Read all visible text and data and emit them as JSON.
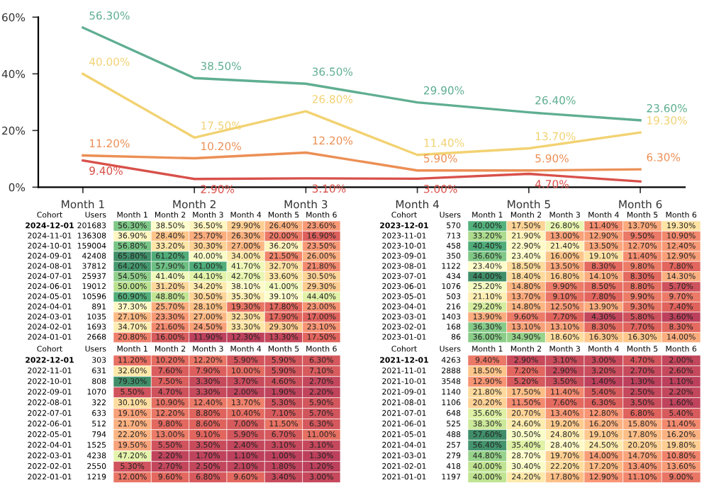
{
  "chart_data": [
    {
      "type": "line",
      "categories": [
        "Month 1",
        "Month 2",
        "Month 3",
        "Month 4",
        "Month 5",
        "Month 6"
      ],
      "ylim": [
        0,
        60
      ],
      "yticks": [
        {
          "value": 0,
          "label": "0%"
        },
        {
          "value": 20,
          "label": "20%"
        },
        {
          "value": 40,
          "label": "40%"
        },
        {
          "value": 60,
          "label": "60%"
        }
      ],
      "grid": false,
      "marker": "none",
      "line_style": "solid",
      "series": [
        {
          "color": "#5fae91",
          "values": [
            56.3,
            38.5,
            36.5,
            29.9,
            26.4,
            23.6
          ],
          "value_labels": [
            "56.30%",
            "38.50%",
            "36.50%",
            "29.90%",
            "26.40%",
            "23.60%"
          ]
        },
        {
          "color": "#f2d272",
          "values": [
            40.0,
            17.5,
            26.8,
            11.4,
            13.7,
            19.3
          ],
          "value_labels": [
            "40.00%",
            "17.50%",
            "26.80%",
            "11.40%",
            "13.70%",
            "19.30%"
          ]
        },
        {
          "color": "#ec8f55",
          "values": [
            11.2,
            10.2,
            12.2,
            5.9,
            5.9,
            6.3
          ],
          "value_labels": [
            "11.20%",
            "10.20%",
            "12.20%",
            "5.90%",
            "5.90%",
            "6.30%"
          ]
        },
        {
          "color": "#d8504a",
          "values": [
            9.4,
            2.9,
            3.1,
            3.0,
            4.7,
            2.0
          ],
          "value_labels": [
            "9.40%",
            "2.90%",
            "3.10%",
            "3.00%",
            "4.70%",
            null
          ]
        }
      ]
    },
    {
      "type": "heatmap",
      "ylabel": "Cohort",
      "y2label": "Users",
      "categories": [
        "Month 1",
        "Month 2",
        "Month 3",
        "Month 4",
        "Month 5",
        "Month 6"
      ],
      "y_categories": [
        "2024-12-01",
        "2024-11-01",
        "2024-10-01",
        "2024-09-01",
        "2024-08-01",
        "2024-07-01",
        "2024-06-01",
        "2024-05-01",
        "2024-04-01",
        "2024-03-01",
        "2024-02-01",
        "2024-01-01"
      ],
      "y2_categories": [
        "201683",
        "136308",
        "159004",
        "42408",
        "37812",
        "25937",
        "19012",
        "10596",
        "891",
        "1035",
        "1693",
        "2668"
      ],
      "cells": [
        [
          56.3,
          38.5,
          36.5,
          29.9,
          26.4,
          23.6
        ],
        [
          36.9,
          28.4,
          25.7,
          26.3,
          20.0,
          16.9
        ],
        [
          56.8,
          33.2,
          30.3,
          27.0,
          36.2,
          23.5
        ],
        [
          65.8,
          61.2,
          40.0,
          34.0,
          21.5,
          26.0
        ],
        [
          64.2,
          57.9,
          61.0,
          41.7,
          32.7,
          21.8
        ],
        [
          54.5,
          41.4,
          44.1,
          42.7,
          33.6,
          30.5
        ],
        [
          50.0,
          31.2,
          34.2,
          38.1,
          41.0,
          29.3
        ],
        [
          60.9,
          48.8,
          30.5,
          35.3,
          39.1,
          44.4
        ],
        [
          37.3,
          25.7,
          28.1,
          19.3,
          17.8,
          23.0
        ],
        [
          27.1,
          23.3,
          27.0,
          32.3,
          17.9,
          17.0
        ],
        [
          34.7,
          21.6,
          24.5,
          33.3,
          29.3,
          23.1
        ],
        [
          20.8,
          16.0,
          11.9,
          12.3,
          13.3,
          17.5
        ]
      ],
      "cell_labels": [
        [
          "56.30%",
          "38.50%",
          "36.50%",
          "29.90%",
          "26.40%",
          "23.60%"
        ],
        [
          "36.90%",
          "28.40%",
          "25.70%",
          "26.30%",
          "20.00%",
          "16.90%"
        ],
        [
          "56.80%",
          "33.20%",
          "30.30%",
          "27.00%",
          "36.20%",
          "23.50%"
        ],
        [
          "65.80%",
          "61.20%",
          "40.00%",
          "34.00%",
          "21.50%",
          "26.00%"
        ],
        [
          "64.20%",
          "57.90%",
          "61.00%",
          "41.70%",
          "32.70%",
          "21.80%"
        ],
        [
          "54.50%",
          "41.40%",
          "44.10%",
          "42.70%",
          "33.60%",
          "30.50%"
        ],
        [
          "50.00%",
          "31.20%",
          "34.20%",
          "38.10%",
          "41.00%",
          "29.30%"
        ],
        [
          "60.90%",
          "48.80%",
          "30.50%",
          "35.30%",
          "39.10%",
          "44.40%"
        ],
        [
          "37.30%",
          "25.70%",
          "28.10%",
          "19.30%",
          "17.80%",
          "23.00%"
        ],
        [
          "27.10%",
          "23.30%",
          "27.00%",
          "32.30%",
          "17.90%",
          "17.00%"
        ],
        [
          "34.70%",
          "21.60%",
          "24.50%",
          "33.30%",
          "29.30%",
          "23.10%"
        ],
        [
          "20.80%",
          "16.00%",
          "11.90%",
          "12.30%",
          "13.30%",
          "17.50%"
        ]
      ]
    },
    {
      "type": "heatmap",
      "ylabel": "Cohort",
      "y2label": "Users",
      "categories": [
        "Month 1",
        "Month 2",
        "Month 3",
        "Month 4",
        "Month 5",
        "Month 6"
      ],
      "y_categories": [
        "2023-12-01",
        "2023-11-01",
        "2023-10-01",
        "2023-09-01",
        "2023-08-01",
        "2023-07-01",
        "2023-06-01",
        "2023-05-01",
        "2023-04-01",
        "2023-03-01",
        "2023-02-01",
        "2023-01-01"
      ],
      "y2_categories": [
        "570",
        "713",
        "458",
        "350",
        "1122",
        "434",
        "1076",
        "503",
        "216",
        "1403",
        "168",
        "86"
      ],
      "cells": [
        [
          40.0,
          17.5,
          26.8,
          11.4,
          13.7,
          19.3
        ],
        [
          33.2,
          21.9,
          13.0,
          12.9,
          9.5,
          10.9
        ],
        [
          40.4,
          22.9,
          21.4,
          13.5,
          12.7,
          12.4
        ],
        [
          36.6,
          23.4,
          16.0,
          19.1,
          11.4,
          12.9
        ],
        [
          23.4,
          18.5,
          13.5,
          8.3,
          9.8,
          7.8
        ],
        [
          44.0,
          18.4,
          16.8,
          14.1,
          8.3,
          14.3
        ],
        [
          25.2,
          14.8,
          9.9,
          8.5,
          8.8,
          5.7
        ],
        [
          21.1,
          13.7,
          9.1,
          7.8,
          9.9,
          9.7
        ],
        [
          29.2,
          14.8,
          12.5,
          13.9,
          9.3,
          7.4
        ],
        [
          13.9,
          9.6,
          7.7,
          4.3,
          5.8,
          3.6
        ],
        [
          36.3,
          13.1,
          13.1,
          8.3,
          7.7,
          8.3
        ],
        [
          36.0,
          34.9,
          18.6,
          16.3,
          16.3,
          14.0
        ]
      ],
      "cell_labels": [
        [
          "40.00%",
          "17.50%",
          "26.80%",
          "11.40%",
          "13.70%",
          "19.30%"
        ],
        [
          "33.20%",
          "21.90%",
          "13.00%",
          "12.90%",
          "9.50%",
          "10.90%"
        ],
        [
          "40.40%",
          "22.90%",
          "21.40%",
          "13.50%",
          "12.70%",
          "12.40%"
        ],
        [
          "36.60%",
          "23.40%",
          "16.00%",
          "19.10%",
          "11.40%",
          "12.90%"
        ],
        [
          "23.40%",
          "18.50%",
          "13.50%",
          "8.30%",
          "9.80%",
          "7.80%"
        ],
        [
          "44.00%",
          "18.40%",
          "16.80%",
          "14.10%",
          "8.30%",
          "14.30%"
        ],
        [
          "25.20%",
          "14.80%",
          "9.90%",
          "8.50%",
          "8.80%",
          "5.70%"
        ],
        [
          "21.10%",
          "13.70%",
          "9.10%",
          "7.80%",
          "9.90%",
          "9.70%"
        ],
        [
          "29.20%",
          "14.80%",
          "12.50%",
          "13.90%",
          "9.30%",
          "7.40%"
        ],
        [
          "13.90%",
          "9.60%",
          "7.70%",
          "4.30%",
          "5.80%",
          "3.60%"
        ],
        [
          "36.30%",
          "13.10%",
          "13.10%",
          "8.30%",
          "7.70%",
          "8.30%"
        ],
        [
          "36.00%",
          "34.90%",
          "18.60%",
          "16.30%",
          "16.30%",
          "14.00%"
        ]
      ]
    },
    {
      "type": "heatmap",
      "ylabel": "Cohort",
      "y2label": "Users",
      "categories": [
        "Month 1",
        "Month 2",
        "Month 3",
        "Month 4",
        "Month 5",
        "Month 6"
      ],
      "y_categories": [
        "2022-12-01",
        "2022-11-01",
        "2022-10-01",
        "2022-09-01",
        "2022-08-01",
        "2022-07-01",
        "2022-06-01",
        "2022-05-01",
        "2022-04-01",
        "2022-03-01",
        "2022-02-01",
        "2022-01-01"
      ],
      "y2_categories": [
        "303",
        "631",
        "808",
        "1070",
        "322",
        "633",
        "512",
        "794",
        "1525",
        "4238",
        "2550",
        "1219"
      ],
      "cells": [
        [
          11.2,
          10.2,
          12.2,
          5.9,
          5.9,
          6.3
        ],
        [
          32.6,
          7.6,
          7.9,
          10.0,
          5.9,
          7.1
        ],
        [
          79.3,
          7.5,
          3.3,
          3.7,
          4.6,
          2.7
        ],
        [
          5.5,
          4.7,
          3.3,
          2.0,
          1.9,
          2.2
        ],
        [
          30.1,
          10.9,
          12.4,
          13.7,
          5.3,
          5.9
        ],
        [
          19.1,
          12.2,
          8.8,
          10.4,
          7.1,
          5.7
        ],
        [
          21.7,
          9.8,
          8.6,
          7.0,
          11.5,
          6.3
        ],
        [
          22.2,
          13.0,
          9.1,
          5.9,
          6.7,
          11.0
        ],
        [
          19.5,
          5.5,
          3.5,
          2.4,
          3.1,
          3.1
        ],
        [
          47.2,
          2.2,
          1.7,
          1.1,
          1.0,
          1.3
        ],
        [
          5.3,
          2.7,
          2.5,
          2.1,
          1.8,
          1.2
        ],
        [
          12.0,
          9.6,
          6.8,
          9.6,
          3.4,
          3.0
        ]
      ],
      "cell_labels": [
        [
          "11.20%",
          "10.20%",
          "12.20%",
          "5.90%",
          "5.90%",
          "6.30%"
        ],
        [
          "32.60%",
          "7.60%",
          "7.90%",
          "10.00%",
          "5.90%",
          "7.10%"
        ],
        [
          "79.30%",
          "7.50%",
          "3.30%",
          "3.70%",
          "4.60%",
          "2.70%"
        ],
        [
          "5.50%",
          "4.70%",
          "3.30%",
          "2.00%",
          "1.90%",
          "2.20%"
        ],
        [
          "30.10%",
          "10.90%",
          "12.40%",
          "13.70%",
          "5.30%",
          "5.90%"
        ],
        [
          "19.10%",
          "12.20%",
          "8.80%",
          "10.40%",
          "7.10%",
          "5.70%"
        ],
        [
          "21.70%",
          "9.80%",
          "8.60%",
          "7.00%",
          "11.50%",
          "6.30%"
        ],
        [
          "22.20%",
          "13.00%",
          "9.10%",
          "5.90%",
          "6.70%",
          "11.00%"
        ],
        [
          "19.50%",
          "5.50%",
          "3.50%",
          "2.40%",
          "3.10%",
          "3.10%"
        ],
        [
          "47.20%",
          "2.20%",
          "1.70%",
          "1.10%",
          "1.00%",
          "1.30%"
        ],
        [
          "5.30%",
          "2.70%",
          "2.50%",
          "2.10%",
          "1.80%",
          "1.20%"
        ],
        [
          "12.00%",
          "9.60%",
          "6.80%",
          "9.60%",
          "3.40%",
          "3.00%"
        ]
      ]
    },
    {
      "type": "heatmap",
      "ylabel": "Cohort",
      "y2label": "Users",
      "categories": [
        "Month 1",
        "Month 2",
        "Month 3",
        "Month 4",
        "Month 5",
        "Month 6"
      ],
      "y_categories": [
        "2021-12-01",
        "2021-11-01",
        "2021-10-01",
        "2021-09-01",
        "2021-08-01",
        "2021-07-01",
        "2021-06-01",
        "2021-05-01",
        "2021-04-01",
        "2021-03-01",
        "2021-02-01",
        "2021-01-01"
      ],
      "y2_categories": [
        "4263",
        "2888",
        "3548",
        "1140",
        "1106",
        "648",
        "525",
        "488",
        "257",
        "279",
        "418",
        "1197"
      ],
      "cells": [
        [
          9.4,
          2.9,
          3.1,
          3.0,
          4.7,
          2.0
        ],
        [
          18.5,
          7.2,
          2.9,
          3.2,
          2.7,
          2.6
        ],
        [
          12.9,
          5.2,
          3.5,
          1.4,
          1.3,
          1.1
        ],
        [
          21.8,
          17.5,
          11.4,
          5.4,
          2.5,
          2.2
        ],
        [
          20.2,
          11.5,
          7.6,
          6.3,
          3.5,
          1.6
        ],
        [
          35.6,
          20.7,
          13.4,
          12.8,
          6.8,
          5.4
        ],
        [
          38.3,
          24.6,
          19.2,
          16.2,
          15.8,
          11.4
        ],
        [
          57.6,
          30.5,
          24.8,
          19.1,
          17.8,
          16.2
        ],
        [
          56.4,
          35.4,
          28.4,
          24.5,
          20.2,
          19.8
        ],
        [
          44.8,
          28.7,
          19.7,
          14.0,
          14.7,
          10.8
        ],
        [
          40.0,
          30.4,
          22.2,
          17.2,
          13.4,
          13.6
        ],
        [
          40.0,
          24.2,
          17.8,
          12.9,
          11.1,
          9.0
        ]
      ],
      "cell_labels": [
        [
          "9.40%",
          "2.90%",
          "3.10%",
          "3.00%",
          "4.70%",
          "2.00%"
        ],
        [
          "18.50%",
          "7.20%",
          "2.90%",
          "3.20%",
          "2.70%",
          "2.60%"
        ],
        [
          "12.90%",
          "5.20%",
          "3.50%",
          "1.40%",
          "1.30%",
          "1.10%"
        ],
        [
          "21.80%",
          "17.50%",
          "11.40%",
          "5.40%",
          "2.50%",
          "2.20%"
        ],
        [
          "20.20%",
          "11.50%",
          "7.60%",
          "6.30%",
          "3.50%",
          "1.60%"
        ],
        [
          "35.60%",
          "20.70%",
          "13.40%",
          "12.80%",
          "6.80%",
          "5.40%"
        ],
        [
          "38.30%",
          "24.60%",
          "19.20%",
          "16.20%",
          "15.80%",
          "11.40%"
        ],
        [
          "57.60%",
          "30.50%",
          "24.80%",
          "19.10%",
          "17.80%",
          "16.20%"
        ],
        [
          "56.40%",
          "35.40%",
          "28.40%",
          "24.50%",
          "20.20%",
          "19.80%"
        ],
        [
          "44.80%",
          "28.70%",
          "19.70%",
          "14.00%",
          "14.70%",
          "10.80%"
        ],
        [
          "40.00%",
          "30.40%",
          "22.20%",
          "17.20%",
          "13.40%",
          "13.60%"
        ],
        [
          "40.00%",
          "24.20%",
          "17.80%",
          "12.90%",
          "11.10%",
          "9.00%"
        ]
      ]
    }
  ]
}
